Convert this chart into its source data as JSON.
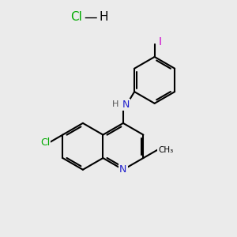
{
  "bg_color": "#ebebeb",
  "bond_color": "#000000",
  "bond_width": 1.5,
  "atom_colors": {
    "N": "#2020cc",
    "Cl_sub": "#00aa00",
    "I": "#cc00cc",
    "H": "#555555",
    "Cl_hcl": "#00aa00"
  },
  "font_size_atom": 9,
  "font_size_hcl": 11
}
